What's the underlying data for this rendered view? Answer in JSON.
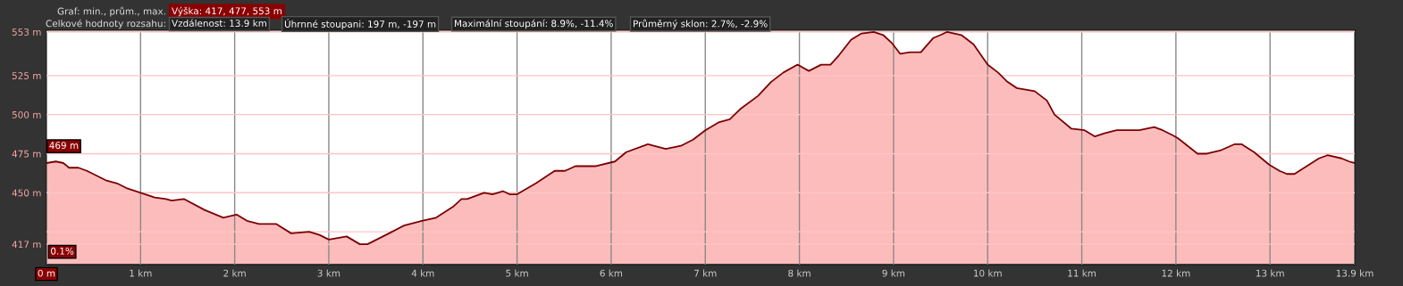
{
  "chart_data": {
    "type": "area",
    "x": [
      0,
      0.1,
      0.18,
      0.24,
      0.34,
      0.43,
      0.63,
      0.75,
      0.85,
      1.0,
      1.15,
      1.27,
      1.33,
      1.46,
      1.68,
      1.88,
      2.02,
      2.13,
      2.26,
      2.44,
      2.6,
      2.79,
      2.9,
      3.0,
      3.19,
      3.33,
      3.41,
      3.64,
      3.8,
      3.99,
      4.14,
      4.32,
      4.41,
      4.47,
      4.65,
      4.74,
      4.85,
      4.92,
      5.0,
      5.2,
      5.4,
      5.51,
      5.62,
      5.83,
      6.04,
      6.16,
      6.39,
      6.58,
      6.74,
      6.87,
      7.0,
      7.14,
      7.26,
      7.38,
      7.56,
      7.7,
      7.83,
      7.98,
      8.1,
      8.23,
      8.33,
      8.42,
      8.55,
      8.66,
      8.79,
      8.89,
      8.98,
      9.07,
      9.18,
      9.29,
      9.42,
      9.5,
      9.57,
      9.72,
      9.85,
      10.0,
      10.11,
      10.21,
      10.31,
      10.5,
      10.63,
      10.71,
      10.89,
      11.03,
      11.14,
      11.24,
      11.37,
      11.61,
      11.77,
      11.86,
      11.96,
      12.02,
      12.23,
      12.33,
      12.47,
      12.62,
      12.7,
      12.83,
      12.99,
      13.1,
      13.18,
      13.26,
      13.39,
      13.52,
      13.61,
      13.76,
      13.84,
      13.9
    ],
    "series": [
      {
        "color": "#7a0000",
        "values": [
          469,
          470,
          469,
          466,
          466,
          464,
          458,
          456,
          453,
          450,
          447,
          446,
          445,
          446,
          439,
          434,
          436,
          432,
          430,
          430,
          424,
          425,
          423,
          420,
          422,
          417,
          417,
          424,
          429,
          432,
          434,
          441,
          446,
          446,
          450,
          449,
          451,
          449,
          449,
          456,
          464,
          464,
          467,
          467,
          470,
          476,
          481,
          478,
          480,
          484,
          490,
          495,
          497,
          504,
          512,
          521,
          527,
          532,
          528,
          532,
          532,
          538,
          548,
          552,
          553,
          551,
          546,
          539,
          540,
          540,
          549,
          551,
          553,
          551,
          545,
          532,
          527,
          521,
          517,
          515,
          509,
          500,
          491,
          490,
          486,
          488,
          490,
          490,
          492,
          490,
          487,
          485,
          475,
          475,
          477,
          481,
          481,
          476,
          468,
          464,
          462,
          462,
          467,
          472,
          474,
          472,
          470,
          469
        ]
      }
    ],
    "xlim": [
      0,
      13.9
    ],
    "xticks": [
      {
        "value": 0,
        "label": "0 m"
      },
      {
        "value": 1,
        "label": "1 km"
      },
      {
        "value": 2,
        "label": "2 km"
      },
      {
        "value": 3,
        "label": "3 km"
      },
      {
        "value": 4,
        "label": "4 km"
      },
      {
        "value": 5,
        "label": "5 km"
      },
      {
        "value": 6,
        "label": "6 km"
      },
      {
        "value": 7,
        "label": "7 km"
      },
      {
        "value": 8,
        "label": "8 km"
      },
      {
        "value": 9,
        "label": "9 km"
      },
      {
        "value": 10,
        "label": "10 km"
      },
      {
        "value": 11,
        "label": "11 km"
      },
      {
        "value": 12,
        "label": "12 km"
      },
      {
        "value": 13,
        "label": "13 km"
      },
      {
        "value": 13.9,
        "label": "13.9 km"
      }
    ],
    "ylim": [
      404,
      554
    ],
    "yticks": [
      {
        "value": 417,
        "label": "417 m"
      },
      {
        "value": 425,
        "label": null
      },
      {
        "value": 450,
        "label": "450 m"
      },
      {
        "value": 475,
        "label": "475 m"
      },
      {
        "value": 500,
        "label": "500 m"
      },
      {
        "value": 525,
        "label": "525 m"
      },
      {
        "value": 553,
        "label": "553 m"
      }
    ],
    "grid": true,
    "annotations": [
      "Graf: min., prům., max.",
      "Výška: 417, 477, 553 m",
      "Celkové hodnoty rozsahu:",
      "Vzdálenost: 13.9 km",
      "Úhrnné stoupani: 197 m, -197 m",
      "Maximální stoupání: 8.9%, -11.4%",
      "Průměrný sklon: 2.7%, -2.9%",
      "0.1%",
      {
        "text": "469 m",
        "x": 0,
        "y": 469
      }
    ]
  }
}
